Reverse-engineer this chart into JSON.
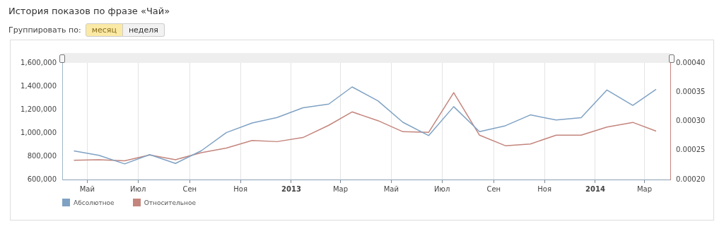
{
  "chart_data": {
    "type": "line",
    "title": "История показов по фразе «Чай»",
    "annotations": [
      "Группировать по:",
      "месяц",
      "неделя"
    ],
    "x": [
      "2012-04-15",
      "2012-05-15",
      "2012-06-15",
      "2012-07-15",
      "2012-08-15",
      "2012-09-15",
      "2012-10-15",
      "2012-11-15",
      "2012-12-15",
      "2013-01-15",
      "2013-02-15",
      "2013-03-15",
      "2013-04-15",
      "2013-05-15",
      "2013-06-15",
      "2013-07-15",
      "2013-08-15",
      "2013-09-15",
      "2013-10-15",
      "2013-11-15",
      "2013-12-15",
      "2014-01-15",
      "2014-02-15",
      "2014-03-15"
    ],
    "series": [
      {
        "name": "Абсолютное",
        "color": "#7fa2c4",
        "values": [
          845000,
          808000,
          734000,
          814000,
          738000,
          847000,
          1002000,
          1085000,
          1132000,
          1215000,
          1247000,
          1394000,
          1275000,
          1091000,
          977000,
          1225000,
          1011000,
          1061000,
          1154000,
          1111000,
          1130000,
          1368000,
          1236000,
          1373000
        ]
      },
      {
        "name": "Относительное",
        "color": "#c4857d",
        "axis": "y2",
        "values": [
          0.000233,
          0.000234,
          0.000232,
          0.000242,
          0.000234,
          0.000246,
          0.000254,
          0.000267,
          0.000265,
          0.000272,
          0.000293,
          0.000316,
          0.000301,
          0.000282,
          0.000281,
          0.000349,
          0.000276,
          0.000258,
          0.000261,
          0.000276,
          0.000276,
          0.00029,
          0.000298,
          0.000283
        ]
      }
    ],
    "xlim": [
      "2012-04-01",
      "2014-04-01"
    ],
    "xticks": [
      {
        "value": "2012-05",
        "label": "Май"
      },
      {
        "value": "2012-07",
        "label": "Июл"
      },
      {
        "value": "2012-09",
        "label": "Сен"
      },
      {
        "value": "2012-11",
        "label": "Ноя"
      },
      {
        "value": "2013-01",
        "label": "2013"
      },
      {
        "value": "2013-03",
        "label": "Мар"
      },
      {
        "value": "2013-05",
        "label": "Май"
      },
      {
        "value": "2013-07",
        "label": "Июл"
      },
      {
        "value": "2013-09",
        "label": "Сен"
      },
      {
        "value": "2013-11",
        "label": "Ноя"
      },
      {
        "value": "2014-01",
        "label": "2014"
      },
      {
        "value": "2014-03",
        "label": "Мар"
      }
    ],
    "ylim": [
      600000,
      1600000
    ],
    "yticks": [
      {
        "value": 600000,
        "label": "600,000"
      },
      {
        "value": 800000,
        "label": "800,000"
      },
      {
        "value": 1000000,
        "label": "1,000,000"
      },
      {
        "value": 1200000,
        "label": "1,200,000"
      },
      {
        "value": 1400000,
        "label": "1,400,000"
      },
      {
        "value": 1600000,
        "label": "1,600,000"
      }
    ],
    "y2lim": [
      0.0002,
      0.0004
    ],
    "y2ticks": [
      {
        "value": 0.0002,
        "label": "0.00020"
      },
      {
        "value": 0.00025,
        "label": "0.00025"
      },
      {
        "value": 0.0003,
        "label": "0.00030"
      },
      {
        "value": 0.00035,
        "label": "0.00035"
      },
      {
        "value": 0.0004,
        "label": "0.00040"
      }
    ],
    "grid": "x",
    "legend": "bottom left",
    "marker": "none",
    "line_style": "solid"
  }
}
